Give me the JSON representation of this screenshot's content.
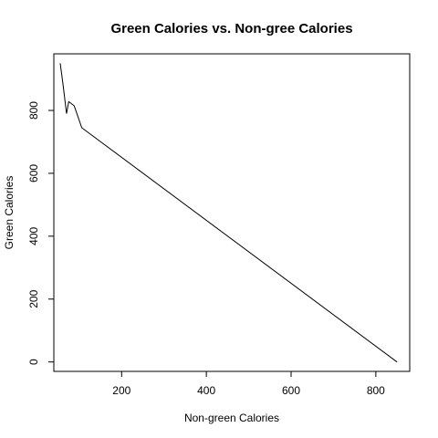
{
  "chart_data": {
    "type": "line",
    "title": "Green Calories vs. Non-gree Calories",
    "xlabel": "Non-green Calories",
    "ylabel": "Green Calories",
    "xlim": [
      40,
      880
    ],
    "ylim": [
      -30,
      980
    ],
    "xticks": [
      200,
      400,
      600,
      800
    ],
    "yticks": [
      0,
      200,
      400,
      600,
      800
    ],
    "grid": false,
    "series": [
      {
        "values": [
          {
            "x": 55,
            "y": 950
          },
          {
            "x": 62,
            "y": 880
          },
          {
            "x": 70,
            "y": 790
          },
          {
            "x": 75,
            "y": 828
          },
          {
            "x": 88,
            "y": 815
          },
          {
            "x": 106,
            "y": 745
          },
          {
            "x": 850,
            "y": 0
          }
        ]
      }
    ]
  }
}
